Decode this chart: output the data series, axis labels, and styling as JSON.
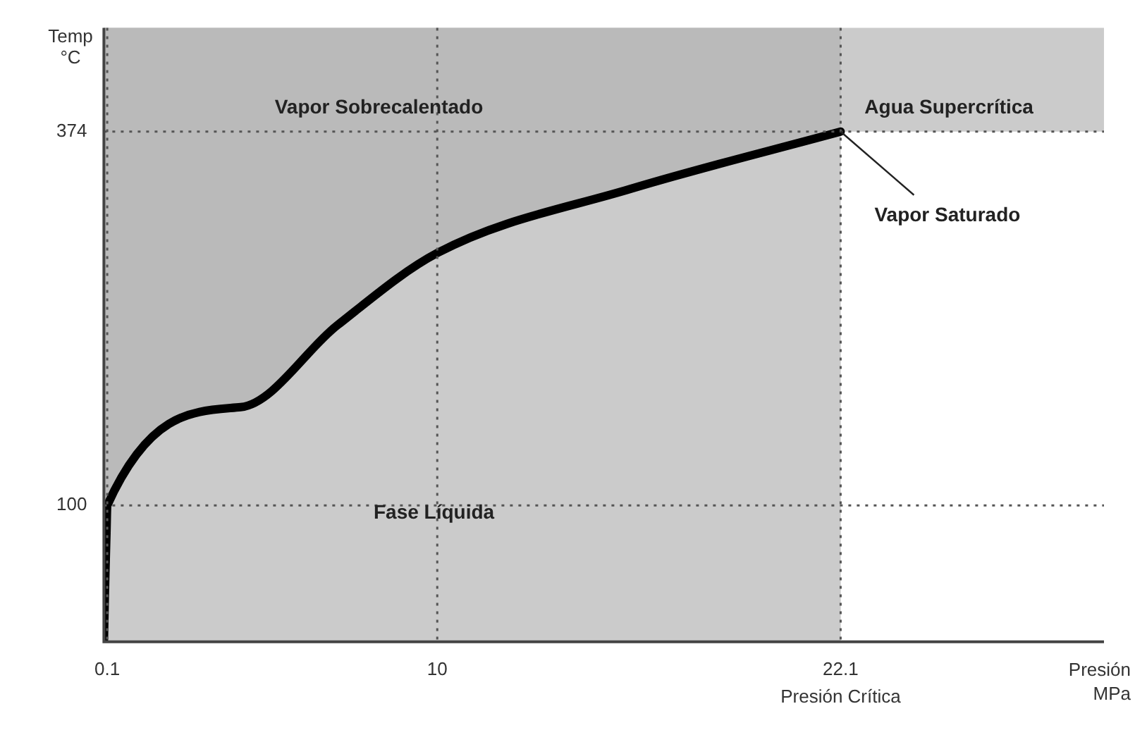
{
  "chart_data": {
    "type": "area",
    "xlabel": "Presión\nMPa",
    "ylabel": "Temp\n°C",
    "x": [
      0,
      0.025,
      0.05,
      0.076,
      0.1,
      4.1,
      7,
      10,
      15.8,
      22.1
    ],
    "series": [
      {
        "color": "#000000",
        "values": [
          0,
          30,
          56,
          79,
          100,
          172,
          232,
          285,
          332,
          374
        ]
      }
    ],
    "xlim": [
      0,
      30
    ],
    "ylim": [
      0,
      450
    ],
    "xticks": [
      0.1,
      10,
      22.1
    ],
    "yticks": [
      100,
      374
    ],
    "grid": true,
    "line_style": "solid",
    "marker": "none",
    "legend": false,
    "bands": [
      {
        "axis": "y",
        "from": 374,
        "to": 450,
        "color": "#cbcbcb"
      },
      {
        "axis": "x",
        "from": 0,
        "to": 22.1,
        "color": "#bababa"
      }
    ],
    "annotations": [
      "Vapor Sobrecalentado",
      "Agua Supercrítica",
      "Fase Líquida",
      {
        "text": "Vapor Saturado",
        "x": 22.1,
        "y": 374
      },
      "Presión Crítica"
    ]
  }
}
